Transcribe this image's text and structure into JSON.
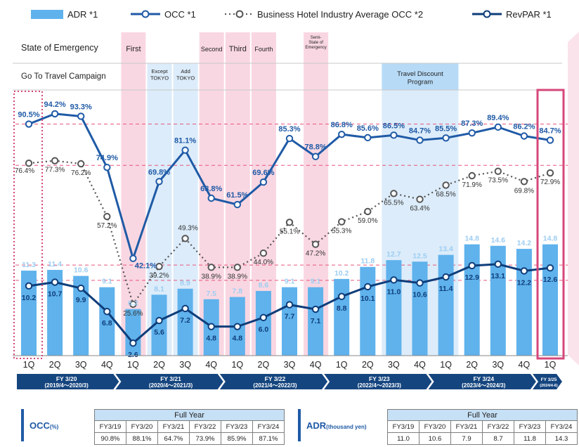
{
  "legend": {
    "adr": "ADR *1",
    "occ": "OCC *1",
    "industry": "Business Hotel Industry Average OCC *2",
    "revpar": "RevPAR *1"
  },
  "rows": {
    "emergency_label": "State of Emergency",
    "gotravel_label": "Go To Travel Campaign",
    "emergency": [
      {
        "text": "First",
        "idx": 4,
        "span": 1,
        "small": false
      },
      {
        "text": "Second",
        "idx": 7,
        "span": 1,
        "small": false
      },
      {
        "text": "Third",
        "idx": 8,
        "span": 1,
        "small": false
      },
      {
        "text": "Fourth",
        "idx": 9,
        "span": 1,
        "small": false
      },
      {
        "text": "Semi-\nState of\nEmergency",
        "idx": 11,
        "span": 1,
        "small": true
      }
    ],
    "gotravel": [
      {
        "text": "Except\nTOKYO",
        "idx": 5,
        "span": 1
      },
      {
        "text": "Add\nTOKYO",
        "idx": 6,
        "span": 1
      },
      {
        "text": "Travel Discount\nProgram",
        "idx": 14,
        "span": 3
      }
    ]
  },
  "chart_data": {
    "type": "bar",
    "categories": [
      "1Q",
      "2Q",
      "3Q",
      "4Q",
      "1Q",
      "2Q",
      "3Q",
      "4Q",
      "1Q",
      "2Q",
      "3Q",
      "4Q",
      "1Q",
      "2Q",
      "3Q",
      "4Q",
      "1Q",
      "2Q",
      "3Q",
      "4Q",
      "1Q"
    ],
    "series": [
      {
        "name": "ADR *1",
        "type": "bar",
        "values": [
          11.3,
          11.4,
          10.6,
          9.1,
          6.2,
          8.1,
          8.9,
          7.5,
          7.8,
          8.6,
          9.1,
          9.1,
          10.2,
          11.8,
          12.7,
          12.5,
          13.4,
          14.8,
          14.6,
          14.2,
          14.8
        ]
      },
      {
        "name": "OCC *1",
        "type": "line",
        "unit": "%",
        "values": [
          90.5,
          94.2,
          93.3,
          74.9,
          42.1,
          69.8,
          81.1,
          63.8,
          61.5,
          69.6,
          85.3,
          78.8,
          86.8,
          85.6,
          86.5,
          84.7,
          85.5,
          87.3,
          89.4,
          86.2,
          84.7
        ]
      },
      {
        "name": "Business Hotel Industry Average OCC *2",
        "type": "line",
        "unit": "%",
        "values": [
          76.4,
          77.3,
          76.2,
          57.2,
          25.6,
          39.2,
          49.3,
          38.9,
          38.9,
          44.0,
          55.1,
          47.2,
          55.3,
          59.0,
          65.5,
          63.4,
          68.5,
          71.9,
          73.5,
          69.8,
          72.9
        ]
      },
      {
        "name": "RevPAR *1",
        "type": "line",
        "values": [
          10.2,
          10.7,
          9.9,
          6.8,
          2.6,
          5.6,
          7.2,
          4.8,
          4.8,
          6.0,
          7.7,
          7.1,
          8.8,
          10.1,
          11.0,
          10.6,
          11.4,
          12.9,
          13.1,
          12.2,
          12.6
        ]
      }
    ],
    "fiscal_years": [
      {
        "label": "FY 3/20",
        "sub": "(2019/4～2020/3)"
      },
      {
        "label": "FY 3/21",
        "sub": "(2020/4～2021/3)"
      },
      {
        "label": "FY 3/22",
        "sub": "(2021/4～2022/3)"
      },
      {
        "label": "FY 3/23",
        "sub": "(2022/4～2023/3)"
      },
      {
        "label": "FY 3/24",
        "sub": "(2023/4～2024/3)"
      },
      {
        "label": "FY 3/25",
        "sub": "(2024/4-6)"
      }
    ]
  },
  "tables": {
    "occ": {
      "label": "OCC",
      "unit": "(%)",
      "header": "Full Year",
      "years": [
        "FY3/19",
        "FY3/20",
        "FY3/21",
        "FY3/22",
        "FY3/23",
        "FY3/24"
      ],
      "values": [
        "90.8%",
        "88.1%",
        "64.7%",
        "73.9%",
        "85.9%",
        "87.1%"
      ]
    },
    "adr": {
      "label": "ADR",
      "unit": "(thousand yen)",
      "header": "Full Year",
      "years": [
        "FY3/19",
        "FY3/20",
        "FY3/21",
        "FY3/22",
        "FY3/23",
        "FY3/24"
      ],
      "values": [
        "11.0",
        "10.6",
        "7.9",
        "8.7",
        "11.8",
        "14.3"
      ]
    }
  },
  "colors": {
    "bar": "#5fb2ec",
    "bar_label": "#9dcdf2",
    "occ": "#1f5aa6",
    "industry": "#555555",
    "revpar": "#0e3d7a",
    "emergency_band": "#f9d7e2",
    "gotravel_band": "#dcecfa",
    "travel_discount": "#b7dbf7",
    "pink_dashed": "#e8577e",
    "highlight_box": "#d6477a",
    "fy_bar": "#15457f"
  }
}
